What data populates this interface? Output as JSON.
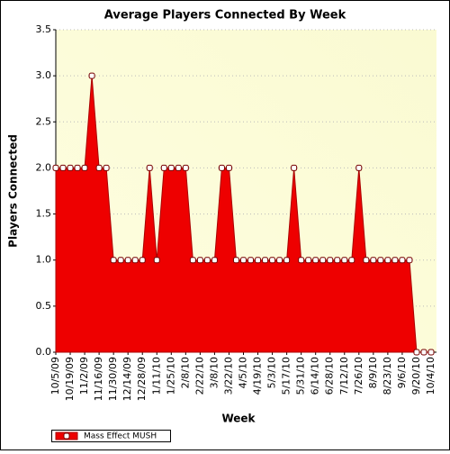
{
  "chart_data": {
    "type": "area",
    "title": "Average Players Connected By Week",
    "x_label": "Week",
    "y_label": "Players Connected",
    "categories": [
      "10/5/09",
      null,
      "10/19/09",
      null,
      "11/2/09",
      null,
      "11/16/09",
      null,
      "11/30/09",
      null,
      "12/14/09",
      null,
      "12/28/09",
      null,
      "1/11/10",
      null,
      "1/25/10",
      null,
      "2/8/10",
      null,
      "2/22/10",
      null,
      "3/8/10",
      null,
      "3/22/10",
      null,
      "4/5/10",
      null,
      "4/19/10",
      null,
      "5/3/10",
      null,
      "5/17/10",
      null,
      "5/31/10",
      null,
      "6/14/10",
      null,
      "6/28/10",
      null,
      "7/12/10",
      null,
      "7/26/10",
      null,
      "8/9/10",
      null,
      "8/23/10",
      null,
      "9/6/10",
      null,
      "9/20/10",
      null,
      "10/4/10"
    ],
    "series": [
      {
        "name": "Mass Effect MUSH",
        "color": "#ee0000",
        "values": [
          2,
          2,
          2,
          2,
          2,
          3,
          2,
          2,
          1,
          1,
          1,
          1,
          1,
          2,
          1,
          2,
          2,
          2,
          2,
          1,
          1,
          1,
          1,
          2,
          2,
          1,
          1,
          1,
          1,
          1,
          1,
          1,
          1,
          2,
          1,
          1,
          1,
          1,
          1,
          1,
          1,
          1,
          2,
          1,
          1,
          1,
          1,
          1,
          1,
          1,
          0,
          0,
          0
        ]
      }
    ],
    "ylim": [
      0,
      3.5
    ],
    "yticks": [
      {
        "value": 0,
        "label": "0.0"
      },
      0.5,
      {
        "value": 1,
        "label": "1.0"
      },
      1.5,
      {
        "value": 2,
        "label": "2.0"
      },
      2.5,
      {
        "value": 3,
        "label": "3.0"
      },
      3.5
    ],
    "grid": true,
    "legend": "bottom-left"
  }
}
